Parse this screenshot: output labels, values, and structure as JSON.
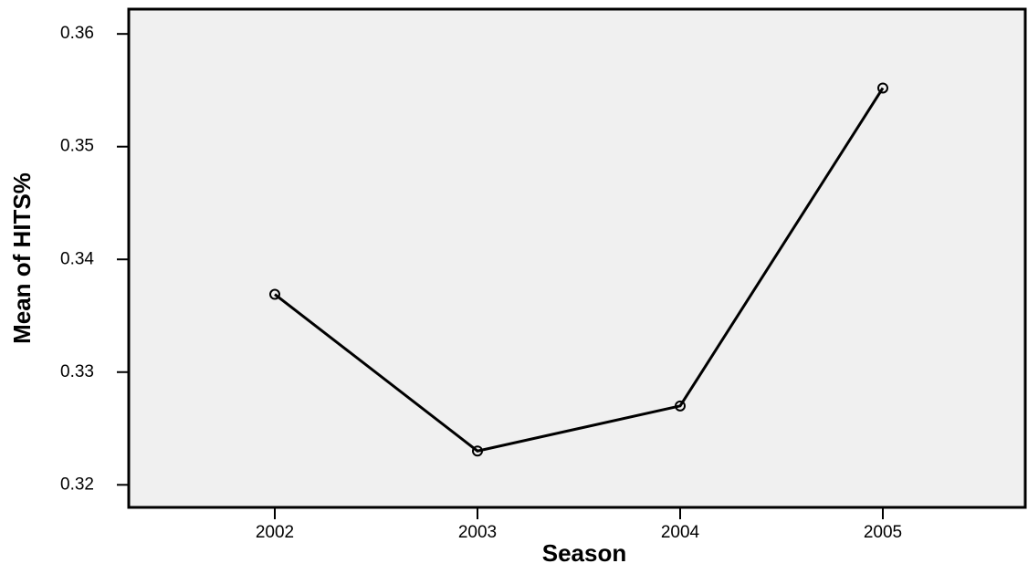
{
  "chart_data": {
    "type": "line",
    "x_label": "Season",
    "y_label": "Mean of HITS%",
    "categories": [
      "2002",
      "2003",
      "2004",
      "2005"
    ],
    "values": [
      0.3369,
      0.323,
      0.327,
      0.3552
    ],
    "color": "#000000",
    "ylim": [
      0.318,
      0.3622
    ],
    "yticks": [
      0.32,
      0.33,
      0.34,
      0.35,
      0.36
    ]
  }
}
